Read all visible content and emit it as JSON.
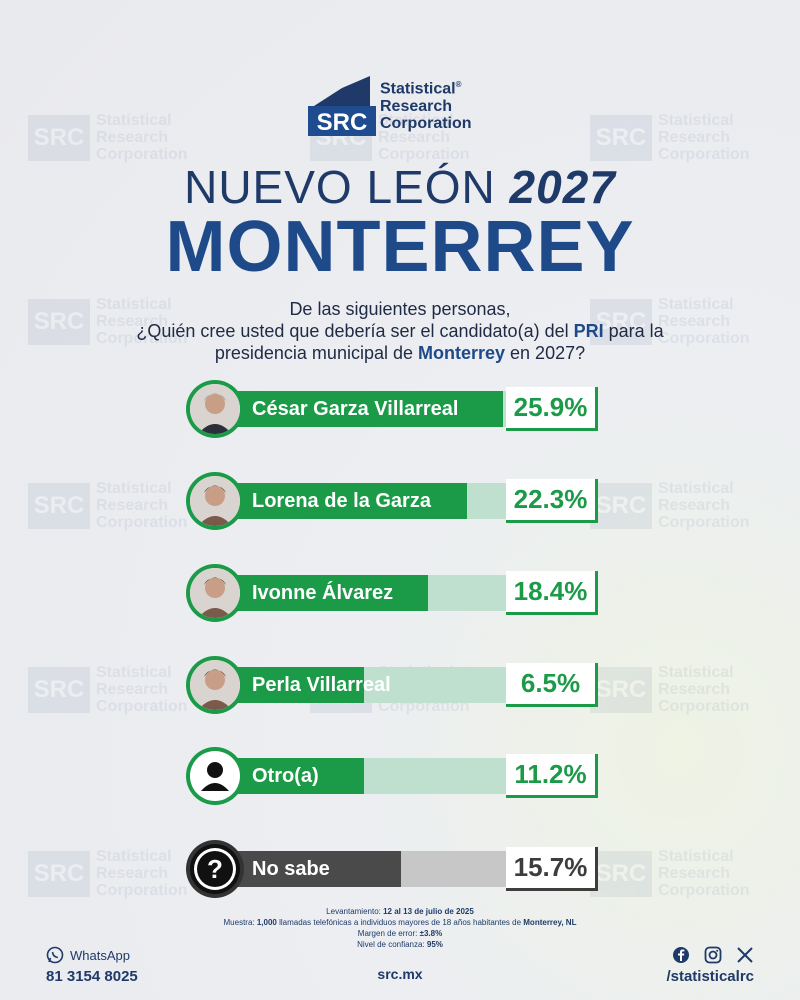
{
  "brand": {
    "logo_letters": "SRC",
    "line1": "Statistical",
    "line2": "Research",
    "line3": "Corporation",
    "registered": "®"
  },
  "title": {
    "region": "NUEVO LEÓN",
    "year": "2027",
    "city": "MONTERREY"
  },
  "question": {
    "line1": "De las siguientes personas,",
    "line2_pre": "¿Quién cree usted que debería ser el candidato(a) del ",
    "line2_bold": "PRI",
    "line2_post": " para la",
    "line3_pre": "presidencia municipal de ",
    "line3_bold": "Monterrey",
    "line3_post": " en 2027?"
  },
  "chart_data": {
    "type": "bar",
    "categories": [
      "César Garza Villarreal",
      "Lorena de la Garza",
      "Ivonne Álvarez",
      "Perla Villarreal",
      "Otro(a)",
      "No sabe"
    ],
    "values": [
      25.9,
      22.3,
      18.4,
      6.5,
      11.2,
      15.7
    ],
    "labels": [
      "25.9%",
      "22.3%",
      "18.4%",
      "6.5%",
      "11.2%",
      "15.7%"
    ],
    "max": 30,
    "colors": {
      "main": "#1b9a48",
      "track": "#bfe0cf",
      "nosabe": "#4a4a4a"
    }
  },
  "methodology": {
    "l1_label": "Levantamiento: ",
    "l1_value": "12 al 13 de julio de 2025",
    "l2_label": "Muestra: ",
    "l2_value1": "1,000",
    "l2_mid": " llamadas telefónicas a individuos mayores de 18 años habitantes de ",
    "l2_value2": "Monterrey, NL",
    "l3_label": "Margen de error: ",
    "l3_value": "±3.8%",
    "l4_label": "Nivel de confianza: ",
    "l4_value": "95%"
  },
  "footer": {
    "whatsapp_label": "WhatsApp",
    "whatsapp_number": "81 3154 8025",
    "website": "src.mx",
    "social_handle": "/statisticalrc",
    "icons": [
      "facebook-icon",
      "instagram-icon",
      "x-icon"
    ]
  },
  "watermark": {
    "letters": "SRC",
    "l1": "Statistical",
    "l2": "Research",
    "l3": "Corporation"
  }
}
